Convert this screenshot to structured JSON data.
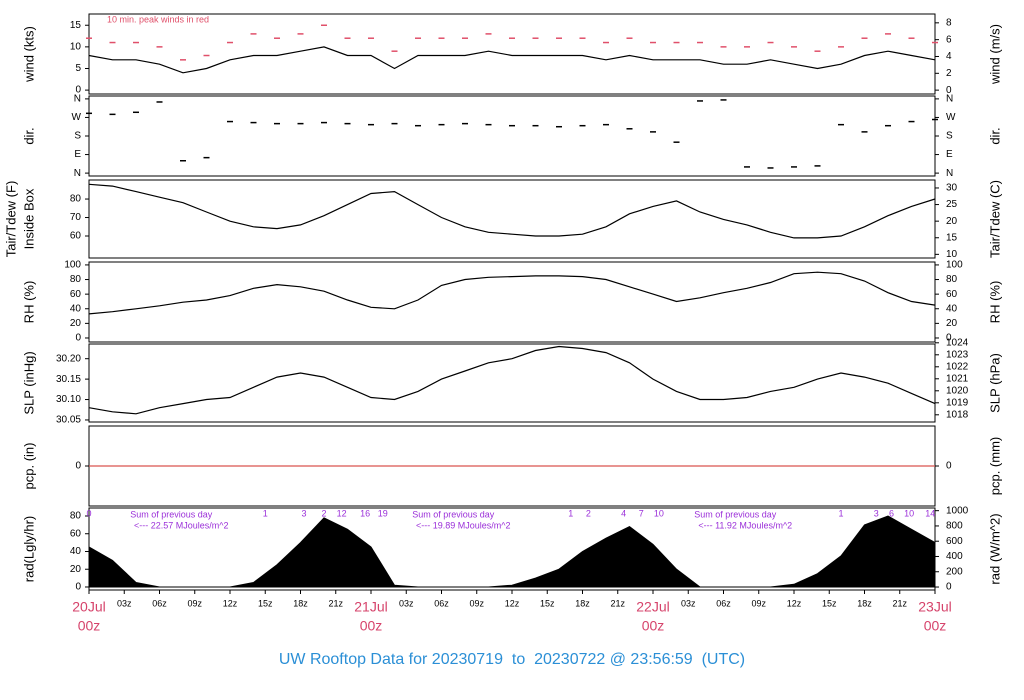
{
  "chart_data": [
    {
      "type": "line",
      "ylabel": [
        "wind (kts)"
      ],
      "y2label": [
        "wind (m/s)"
      ],
      "annotation": "10 min. peak winds in red",
      "x": [
        0,
        2,
        4,
        6,
        8,
        10,
        12,
        14,
        16,
        18,
        20,
        22,
        24,
        26,
        28,
        30,
        32,
        34,
        36,
        38,
        40,
        42,
        44,
        46,
        48,
        50,
        52,
        54,
        56,
        58,
        60,
        62,
        64,
        66,
        68,
        70,
        72
      ],
      "series": [
        {
          "color": "#000000",
          "style": "line",
          "values": [
            8,
            7,
            7,
            6,
            4,
            5,
            7,
            8,
            8,
            9,
            10,
            8,
            8,
            5,
            8,
            8,
            8,
            9,
            8,
            8,
            8,
            8,
            7,
            8,
            7,
            7,
            7,
            6,
            6,
            7,
            6,
            5,
            6,
            8,
            9,
            8,
            7
          ]
        },
        {
          "color": "#e0506a",
          "style": "dash",
          "values": [
            12,
            11,
            11,
            10,
            7,
            8,
            11,
            13,
            12,
            13,
            15,
            12,
            12,
            9,
            12,
            12,
            12,
            13,
            12,
            12,
            12,
            12,
            11,
            12,
            11,
            11,
            11,
            10,
            10,
            11,
            10,
            9,
            10,
            12,
            13,
            12,
            11
          ]
        }
      ],
      "ylim": [
        -0.9,
        17.6
      ],
      "yticks": [
        0,
        5,
        10,
        15
      ],
      "y2lim": [
        -0.46,
        9.05
      ],
      "y2ticks": [
        0,
        2,
        4,
        6,
        8
      ]
    },
    {
      "type": "scatter",
      "ylabel": [
        "dir."
      ],
      "y2label": [
        "dir."
      ],
      "x": [
        0,
        2,
        4,
        6,
        8,
        10,
        12,
        14,
        16,
        18,
        20,
        22,
        24,
        26,
        28,
        30,
        32,
        34,
        36,
        38,
        40,
        42,
        44,
        46,
        48,
        50,
        52,
        54,
        56,
        58,
        60,
        62,
        64,
        66,
        68,
        70,
        72
      ],
      "series": [
        {
          "color": "#000000",
          "style": "dash",
          "values": [
            290,
            285,
            295,
            345,
            60,
            75,
            250,
            245,
            240,
            240,
            245,
            240,
            235,
            240,
            230,
            235,
            240,
            235,
            230,
            230,
            225,
            230,
            235,
            215,
            200,
            150,
            350,
            355,
            30,
            25,
            30,
            35,
            235,
            200,
            230,
            250,
            260
          ]
        }
      ],
      "ylim": [
        -14,
        374
      ],
      "yticks": [
        {
          "value": 0,
          "label": "N"
        },
        {
          "value": 90,
          "label": "E"
        },
        {
          "value": 180,
          "label": "S"
        },
        {
          "value": 270,
          "label": "W"
        },
        {
          "value": 360,
          "label": "N"
        }
      ],
      "y2lim": [
        -14,
        374
      ],
      "y2ticks": [
        {
          "value": 0,
          "label": "N"
        },
        {
          "value": 90,
          "label": "E"
        },
        {
          "value": 180,
          "label": "S"
        },
        {
          "value": 270,
          "label": "W"
        },
        {
          "value": 360,
          "label": "N"
        }
      ]
    },
    {
      "type": "line",
      "ylabel": [
        "Tair/Tdew (F)",
        "Inside Box"
      ],
      "y2label": [
        "Tair/Tdew (C)"
      ],
      "x": [
        0,
        2,
        4,
        6,
        8,
        10,
        12,
        14,
        16,
        18,
        20,
        22,
        24,
        26,
        28,
        30,
        32,
        34,
        36,
        38,
        40,
        42,
        44,
        46,
        48,
        50,
        52,
        54,
        56,
        58,
        60,
        62,
        64,
        66,
        68,
        70,
        72
      ],
      "series": [
        {
          "color": "#000000",
          "style": "line",
          "values": [
            88,
            87,
            84,
            81,
            78,
            73,
            68,
            65,
            64,
            66,
            71,
            77,
            83,
            84,
            77,
            70,
            65,
            62,
            61,
            60,
            60,
            61,
            65,
            72,
            76,
            79,
            73,
            69,
            66,
            62,
            59,
            59,
            60,
            65,
            71,
            76,
            80
          ]
        }
      ],
      "ylim": [
        48.1,
        90.3
      ],
      "yticks": [
        60,
        70,
        80
      ],
      "y2lim": [
        8.9,
        32.4
      ],
      "y2ticks": [
        10,
        15,
        20,
        25,
        30
      ]
    },
    {
      "type": "line",
      "ylabel": [
        "RH (%)"
      ],
      "y2label": [
        "RH (%)"
      ],
      "x": [
        0,
        2,
        4,
        6,
        8,
        10,
        12,
        14,
        16,
        18,
        20,
        22,
        24,
        26,
        28,
        30,
        32,
        34,
        36,
        38,
        40,
        42,
        44,
        46,
        48,
        50,
        52,
        54,
        56,
        58,
        60,
        62,
        64,
        66,
        68,
        70,
        72
      ],
      "series": [
        {
          "color": "#000000",
          "style": "line",
          "values": [
            33,
            36,
            40,
            44,
            49,
            52,
            58,
            68,
            73,
            70,
            64,
            52,
            42,
            40,
            52,
            72,
            80,
            83,
            84,
            85,
            85,
            84,
            80,
            70,
            60,
            50,
            55,
            62,
            68,
            76,
            88,
            90,
            88,
            78,
            62,
            50,
            45
          ]
        }
      ],
      "ylim": [
        -5.5,
        104
      ],
      "yticks": [
        0,
        20,
        40,
        60,
        80,
        100
      ],
      "y2lim": [
        -5.5,
        104
      ],
      "y2ticks": [
        0,
        20,
        40,
        60,
        80,
        100
      ]
    },
    {
      "type": "line",
      "ylabel": [
        "SLP (inHg)"
      ],
      "y2label": [
        "SLP (hPa)"
      ],
      "x": [
        0,
        2,
        4,
        6,
        8,
        10,
        12,
        14,
        16,
        18,
        20,
        22,
        24,
        26,
        28,
        30,
        32,
        34,
        36,
        38,
        40,
        42,
        44,
        46,
        48,
        50,
        52,
        54,
        56,
        58,
        60,
        62,
        64,
        66,
        68,
        70,
        72
      ],
      "series": [
        {
          "color": "#000000",
          "style": "line",
          "values": [
            30.08,
            30.07,
            30.065,
            30.08,
            30.09,
            30.1,
            30.105,
            30.13,
            30.155,
            30.165,
            30.155,
            30.13,
            30.105,
            30.1,
            30.12,
            30.15,
            30.17,
            30.19,
            30.2,
            30.22,
            30.23,
            30.225,
            30.215,
            30.19,
            30.15,
            30.12,
            30.1,
            30.1,
            30.105,
            30.12,
            30.13,
            30.15,
            30.165,
            30.155,
            30.14,
            30.115,
            30.09
          ]
        }
      ],
      "ylim": [
        30.045,
        30.236
      ],
      "yticks": [
        30.05,
        {
          "value": 30.1,
          "label": "30.10"
        },
        30.15,
        {
          "value": 30.2,
          "label": "30.20"
        }
      ],
      "y2lim": [
        1017.4,
        1023.9
      ],
      "y2ticks": [
        1018,
        1019,
        1020,
        1021,
        1022,
        1023,
        1024
      ]
    },
    {
      "type": "line",
      "ylabel": [
        "pcp. (in)"
      ],
      "y2label": [
        "pcp. (mm)"
      ],
      "x": [
        0,
        2,
        4,
        6,
        8,
        10,
        12,
        14,
        16,
        18,
        20,
        22,
        24,
        26,
        28,
        30,
        32,
        34,
        36,
        38,
        40,
        42,
        44,
        46,
        48,
        50,
        52,
        54,
        56,
        58,
        60,
        62,
        64,
        66,
        68,
        70,
        72
      ],
      "series": [
        {
          "color": "#d9534f",
          "style": "line",
          "values": [
            0,
            0,
            0,
            0,
            0,
            0,
            0,
            0,
            0,
            0,
            0,
            0,
            0,
            0,
            0,
            0,
            0,
            0,
            0,
            0,
            0,
            0,
            0,
            0,
            0,
            0,
            0,
            0,
            0,
            0,
            0,
            0,
            0,
            0,
            0,
            0,
            0
          ]
        }
      ],
      "ylim": [
        -1,
        1
      ],
      "yticks": [
        0
      ],
      "y2lim": [
        -1,
        1
      ],
      "y2ticks": [
        0
      ]
    },
    {
      "type": "area",
      "ylabel": [
        "rad(Lgly/hr)"
      ],
      "y2label": [
        "rad (W/m^2)"
      ],
      "x": [
        0,
        2,
        4,
        6,
        8,
        10,
        12,
        14,
        16,
        18,
        20,
        22,
        24,
        26,
        28,
        30,
        32,
        34,
        36,
        38,
        40,
        42,
        44,
        46,
        48,
        50,
        52,
        54,
        56,
        58,
        60,
        62,
        64,
        66,
        68,
        70,
        72
      ],
      "series": [
        {
          "color": "#000000",
          "style": "area",
          "values": [
            45,
            30,
            5,
            0,
            0,
            0,
            0,
            5,
            25,
            50,
            78,
            65,
            45,
            2,
            0,
            0,
            0,
            0,
            2,
            10,
            20,
            40,
            55,
            68,
            48,
            20,
            0,
            0,
            0,
            0,
            3,
            15,
            35,
            70,
            80,
            65,
            50
          ]
        }
      ],
      "ylim": [
        -3.4,
        89
      ],
      "yticks": [
        0,
        20,
        40,
        60,
        80
      ],
      "y2lim": [
        -39,
        1035
      ],
      "y2ticks": [
        0,
        200,
        400,
        600,
        800,
        1000
      ],
      "daily_sums": [
        [
          "Sum of previous day",
          "<--- 22.57 MJoules/m^2"
        ],
        [
          "Sum of previous day",
          "<--- 19.89 MJoules/m^2"
        ],
        [
          "Sum of previous day",
          "<--- 11.92 MJoules/m^2"
        ]
      ],
      "count_labels": {
        "x": [
          0,
          15,
          18.3,
          20,
          21.5,
          23.5,
          25,
          41,
          42.5,
          45.5,
          47,
          48.5,
          64,
          67,
          68.3,
          69.8,
          71.6
        ],
        "labels": [
          "0",
          "1",
          "3",
          "2",
          "12",
          "16",
          "19",
          "1",
          "2",
          "4",
          "7",
          "10",
          "1",
          "3",
          "6",
          "10",
          "14"
        ]
      },
      "xlim": [
        0,
        72
      ],
      "xticks": [
        {
          "value": 0,
          "label": "00z"
        },
        {
          "value": 3,
          "label": "03z"
        },
        {
          "value": 6,
          "label": "06z"
        },
        {
          "value": 9,
          "label": "09z"
        },
        {
          "value": 12,
          "label": "12z"
        },
        {
          "value": 15,
          "label": "15z"
        },
        {
          "value": 18,
          "label": "18z"
        },
        {
          "value": 21,
          "label": "21z"
        },
        {
          "value": 24,
          "label": "00z"
        },
        {
          "value": 27,
          "label": "03z"
        },
        {
          "value": 30,
          "label": "06z"
        },
        {
          "value": 33,
          "label": "09z"
        },
        {
          "value": 36,
          "label": "12z"
        },
        {
          "value": 39,
          "label": "15z"
        },
        {
          "value": 42,
          "label": "18z"
        },
        {
          "value": 45,
          "label": "21z"
        },
        {
          "value": 48,
          "label": "00z"
        },
        {
          "value": 51,
          "label": "03z"
        },
        {
          "value": 54,
          "label": "06z"
        },
        {
          "value": 57,
          "label": "09z"
        },
        {
          "value": 60,
          "label": "12z"
        },
        {
          "value": 63,
          "label": "15z"
        },
        {
          "value": 66,
          "label": "18z"
        },
        {
          "value": 69,
          "label": "21z"
        },
        {
          "value": 72,
          "label": "00z"
        }
      ],
      "day_labels": [
        {
          "value": 0,
          "label": "20Jul"
        },
        {
          "value": 24,
          "label": "21Jul"
        },
        {
          "value": 48,
          "label": "22Jul"
        },
        {
          "value": 72,
          "label": "23Jul"
        }
      ],
      "title": "UW Rooftop Data for 20230719  to  20230722 @ 23:56:59  (UTC)",
      "title_color": "#2b8fd6"
    }
  ]
}
